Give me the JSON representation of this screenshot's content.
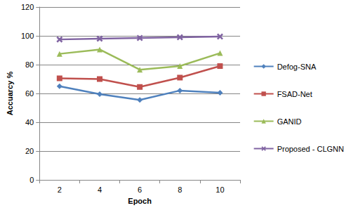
{
  "chart_data": {
    "type": "line",
    "x_label": "Epoch",
    "y_label": "Accuarcy %",
    "categories": [
      "2",
      "4",
      "6",
      "8",
      "10"
    ],
    "series": [
      {
        "name": "Defog-SNA",
        "color": "#4F81BD",
        "marker": "diamond",
        "values": [
          65,
          59.5,
          55.5,
          62,
          60.5
        ]
      },
      {
        "name": "FSAD-Net",
        "color": "#C0504D",
        "marker": "square",
        "values": [
          70.5,
          70,
          64.5,
          71,
          79
        ]
      },
      {
        "name": "GANID",
        "color": "#9BBB59",
        "marker": "triangle",
        "values": [
          87.5,
          90.5,
          76.5,
          79,
          88
        ]
      },
      {
        "name": "Proposed - CLGNN",
        "color": "#8064A2",
        "marker": "x",
        "values": [
          97.5,
          98,
          98.5,
          99,
          99.5
        ]
      }
    ],
    "ylim": [
      0,
      120
    ],
    "yticks": [
      0,
      20,
      40,
      60,
      80,
      100,
      120
    ],
    "grid": true,
    "legend": "right"
  }
}
